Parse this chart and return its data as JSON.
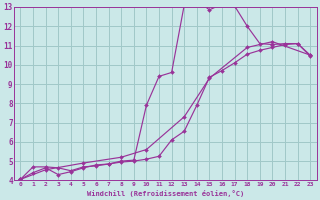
{
  "background_color": "#cbe8e8",
  "grid_color": "#a0c8c8",
  "line_color": "#993399",
  "marker_color": "#993399",
  "xlabel": "Windchill (Refroidissement éolien,°C)",
  "xlim": [
    -0.5,
    23.5
  ],
  "ylim": [
    4,
    13
  ],
  "yticks": [
    4,
    5,
    6,
    7,
    8,
    9,
    10,
    11,
    12,
    13
  ],
  "xticks": [
    0,
    1,
    2,
    3,
    4,
    5,
    6,
    7,
    8,
    9,
    10,
    11,
    12,
    13,
    14,
    15,
    16,
    17,
    18,
    19,
    20,
    21,
    22,
    23
  ],
  "series": [
    {
      "x": [
        0,
        1,
        2,
        3,
        4,
        5,
        6,
        7,
        8,
        9,
        10,
        11,
        12,
        13,
        14,
        15,
        16,
        17,
        18,
        19,
        20,
        21,
        22,
        23
      ],
      "y": [
        4.05,
        4.7,
        4.7,
        4.65,
        4.5,
        4.7,
        4.75,
        4.85,
        5.0,
        5.05,
        7.9,
        9.4,
        9.6,
        13.1,
        13.35,
        12.85,
        13.15,
        13.05,
        12.0,
        11.1,
        11.05,
        11.1,
        11.1,
        10.45
      ]
    },
    {
      "x": [
        0,
        1,
        2,
        3,
        4,
        5,
        6,
        7,
        8,
        9,
        10,
        11,
        12,
        13,
        14,
        15,
        16,
        17,
        18,
        19,
        20,
        21,
        22,
        23
      ],
      "y": [
        4.05,
        4.4,
        4.65,
        4.3,
        4.45,
        4.65,
        4.8,
        4.85,
        4.95,
        5.0,
        5.1,
        5.25,
        6.1,
        6.55,
        7.9,
        9.35,
        9.7,
        10.1,
        10.55,
        10.75,
        10.9,
        11.05,
        11.1,
        10.5
      ]
    },
    {
      "x": [
        0,
        2,
        5,
        8,
        10,
        13,
        15,
        18,
        20,
        23
      ],
      "y": [
        4.05,
        4.55,
        4.9,
        5.2,
        5.6,
        7.3,
        9.3,
        10.9,
        11.2,
        10.5
      ]
    }
  ]
}
